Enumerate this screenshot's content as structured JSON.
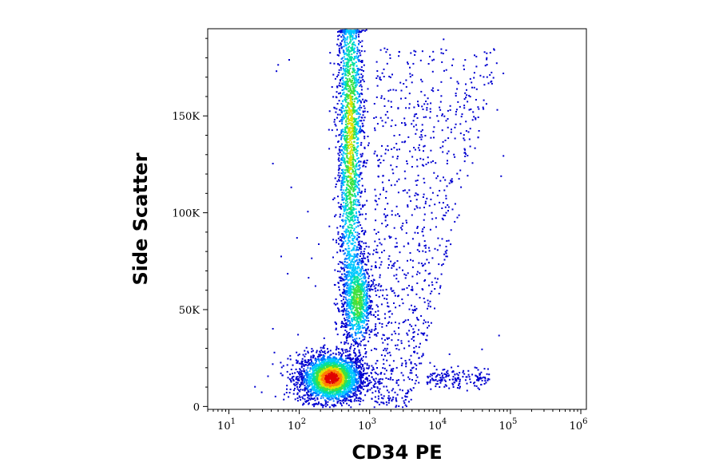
{
  "chart_data": {
    "type": "scatter",
    "subtype": "flow-cytometry density dot plot (pseudocolor)",
    "xlabel": "CD34 PE",
    "ylabel": "Side Scatter",
    "x_scale": "log",
    "x_range": [
      5,
      1200000
    ],
    "x_ticks": [
      {
        "value": 10,
        "base": "10",
        "exp": "1"
      },
      {
        "value": 100,
        "base": "10",
        "exp": "2"
      },
      {
        "value": 1000,
        "base": "10",
        "exp": "3"
      },
      {
        "value": 10000,
        "base": "10",
        "exp": "4"
      },
      {
        "value": 100000,
        "base": "10",
        "exp": "5"
      },
      {
        "value": 1000000,
        "base": "10",
        "exp": "6"
      }
    ],
    "y_scale": "linear",
    "y_range": [
      -1500,
      195000
    ],
    "y_ticks": [
      {
        "value": 0,
        "label": "0"
      },
      {
        "value": 50000,
        "label": "50K"
      },
      {
        "value": 100000,
        "label": "100K"
      },
      {
        "value": 150000,
        "label": "150K"
      }
    ],
    "grid": false,
    "legend": "none",
    "colormap": [
      "#0000d0",
      "#0070ff",
      "#00c8ff",
      "#00e0a0",
      "#40e040",
      "#e0e000",
      "#ff8000",
      "#e00000"
    ],
    "populations": [
      {
        "x_center": 280,
        "log_sd_x": 0.15,
        "y_center": 15000,
        "y_sd": 4500,
        "peak_density": 1.0
      },
      {
        "x_center": 660,
        "log_sd_x": 0.07,
        "y_center": 55000,
        "y_sd": 9000,
        "peak_density": 0.45
      },
      {
        "x_center": 520,
        "log_sd_x": 0.06,
        "y_center": 140000,
        "y_sd": 35000,
        "peak_density": 0.55
      }
    ]
  }
}
